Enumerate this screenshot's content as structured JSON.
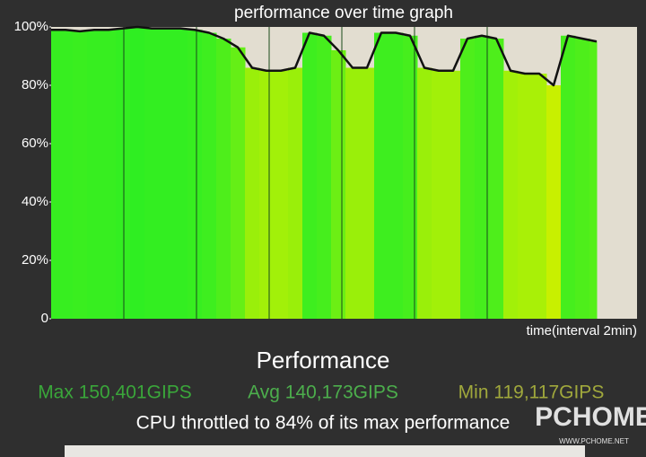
{
  "chart_data": {
    "type": "line",
    "title": "performance over time graph",
    "x_label": "time(interval 2min)",
    "values": [
      99,
      99,
      98.5,
      99,
      99,
      99.5,
      100,
      99.5,
      99.5,
      99.5,
      99,
      98,
      96,
      93,
      86,
      85,
      85,
      86,
      98,
      97,
      92,
      86,
      86,
      98,
      98,
      97,
      86,
      85,
      85,
      96,
      97,
      96,
      85,
      84,
      84,
      80,
      97,
      96,
      95
    ],
    "color": "#111111",
    "color_scale": {
      "low": "#c8f000",
      "high": "#2fee22"
    },
    "ylim": [
      0,
      100
    ],
    "yticks": [
      0,
      {
        "value": 20,
        "label": "20%"
      },
      {
        "value": 40,
        "label": "40%"
      },
      {
        "value": 60,
        "label": "60%"
      },
      {
        "value": 80,
        "label": "80%"
      },
      {
        "value": 100,
        "label": "100%"
      }
    ],
    "grid": false
  },
  "summary": {
    "heading": "Performance",
    "max": "Max 150,401GIPS",
    "avg": "Avg 140,173GIPS",
    "min": "Min 119,117GIPS",
    "throttle": "CPU throttled to 84% of its max performance"
  },
  "watermark": {
    "brand": "PCHOME",
    "url": "WWW.PCHOME.NET"
  }
}
